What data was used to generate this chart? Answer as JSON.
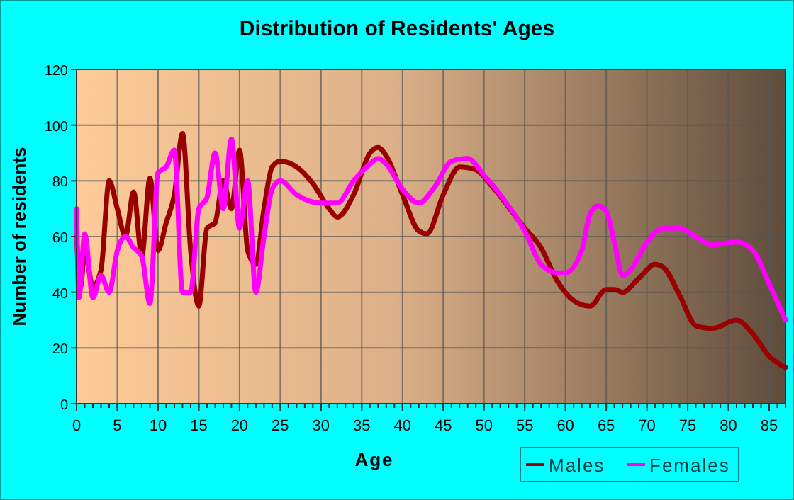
{
  "chart_data": {
    "type": "line",
    "title": "Distribution of Residents' Ages",
    "xlabel": "Age",
    "ylabel": "Number of residents",
    "xlim": [
      0,
      87
    ],
    "ylim": [
      0,
      120
    ],
    "xticks": [
      0,
      5,
      10,
      15,
      20,
      25,
      30,
      35,
      40,
      45,
      50,
      55,
      60,
      65,
      70,
      75,
      80,
      85
    ],
    "yticks": [
      0,
      20,
      40,
      60,
      80,
      100,
      120
    ],
    "grid": true,
    "legend": "bottom right",
    "line_style": "solid",
    "marker": "none",
    "series": [
      {
        "name": "Males",
        "color": "#990000",
        "x": [
          0,
          0.5,
          1,
          2,
          3,
          4,
          5,
          6,
          7,
          8,
          9,
          10,
          11,
          12,
          13,
          14,
          15,
          16,
          17,
          18,
          19,
          20,
          21,
          22,
          23,
          24,
          25,
          27,
          29,
          31,
          32,
          34,
          36,
          37,
          38,
          40,
          42,
          43,
          45,
          47,
          49,
          51,
          55,
          57,
          59,
          61,
          63,
          65,
          66,
          67,
          69,
          71,
          72,
          74,
          76,
          78,
          81,
          83,
          85,
          87
        ],
        "values": [
          60,
          42,
          55,
          42,
          48,
          80,
          70,
          60,
          76,
          53,
          81,
          55,
          65,
          75,
          97,
          55,
          35,
          63,
          65,
          80,
          70,
          91,
          55,
          50,
          70,
          85,
          87,
          85,
          79,
          70,
          67,
          75,
          90,
          92,
          89,
          75,
          62,
          61,
          75,
          85,
          84,
          78,
          63,
          56,
          44,
          37,
          35,
          41,
          41,
          40,
          45,
          50,
          49,
          39,
          28,
          27,
          30,
          25,
          17,
          13
        ]
      },
      {
        "name": "Females",
        "color": "#ff00ff",
        "x": [
          0,
          0.3,
          1,
          2,
          3,
          4,
          5,
          6,
          7,
          8,
          9,
          10,
          11,
          12,
          13,
          14,
          15,
          16,
          17,
          18,
          19,
          20,
          21,
          22,
          23,
          24,
          25,
          27,
          30,
          32,
          34,
          36,
          37,
          38,
          40,
          42,
          44,
          46,
          48,
          50,
          52,
          55,
          57,
          59,
          60,
          62,
          63,
          64,
          65,
          66,
          67,
          68,
          70,
          72,
          74,
          76,
          78,
          81,
          83,
          85,
          87
        ],
        "values": [
          70,
          38,
          61,
          38,
          46,
          40,
          55,
          60,
          56,
          53,
          36,
          83,
          85,
          91,
          40,
          40,
          70,
          74,
          90,
          70,
          95,
          63,
          80,
          40,
          60,
          77,
          80,
          75,
          72,
          72,
          80,
          86,
          88,
          86,
          77,
          72,
          78,
          87,
          88,
          82,
          75,
          62,
          50,
          47,
          47,
          55,
          68,
          71,
          69,
          58,
          46,
          48,
          58,
          63,
          63,
          60,
          57,
          58,
          55,
          43,
          30
        ]
      }
    ]
  }
}
